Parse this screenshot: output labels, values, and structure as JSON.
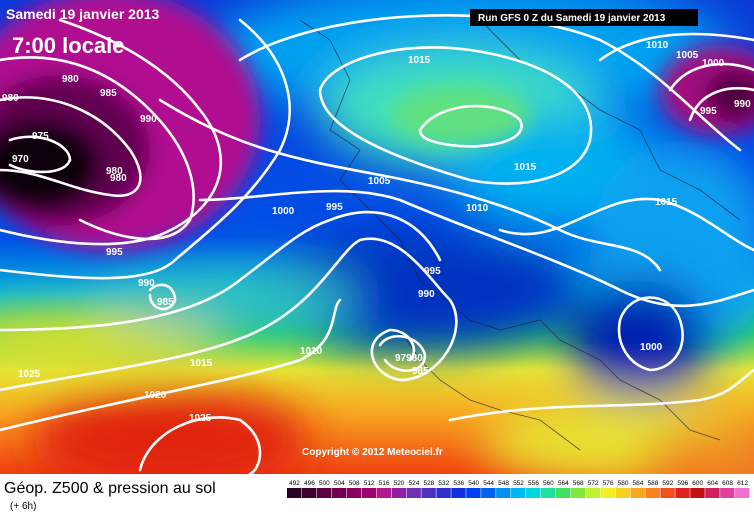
{
  "header": {
    "date": "Samedi 19 janvier 2013",
    "time": "7:00 locale",
    "run": "Run GFS 0 Z du Samedi 19 janvier 2013"
  },
  "map": {
    "isobar_labels": [
      980,
      980,
      985,
      990,
      975,
      970,
      980,
      980,
      995,
      990,
      985,
      1000,
      995,
      1005,
      1015,
      1015,
      1010,
      995,
      990,
      97980,
      985,
      1010,
      1015,
      1020,
      1025,
      1025,
      1010,
      1005,
      1000,
      995,
      990,
      1015,
      1000
    ],
    "copyright": "Copyright © 2012 Meteociel.fr"
  },
  "legend": {
    "title": "Géop. Z500 & pression au sol",
    "lead": "(+ 6h)",
    "scale": [
      492,
      496,
      500,
      504,
      508,
      512,
      516,
      520,
      524,
      528,
      532,
      536,
      540,
      544,
      548,
      552,
      556,
      560,
      564,
      568,
      572,
      576,
      580,
      584,
      588,
      592,
      596,
      600,
      604,
      608,
      612
    ]
  }
}
